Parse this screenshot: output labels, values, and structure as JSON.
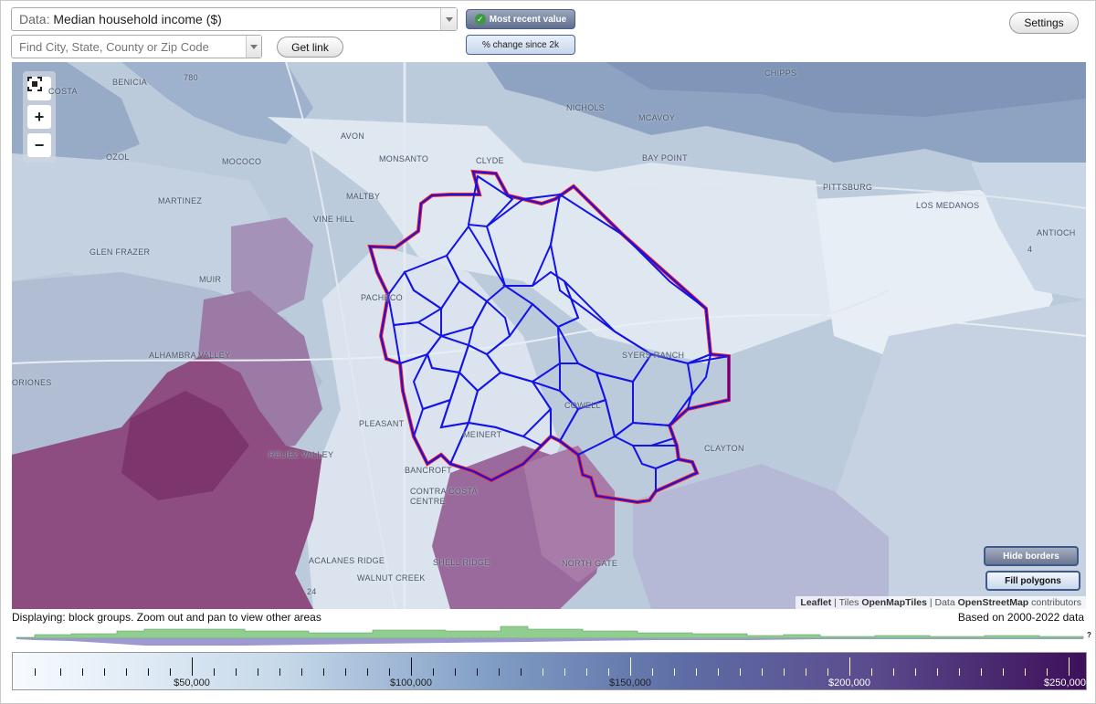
{
  "data_select": {
    "label": "Data:",
    "value": "Median household income ($)"
  },
  "search": {
    "placeholder": "Find City, State, County or Zip Code"
  },
  "get_link_label": "Get link",
  "mode": {
    "recent_label": "Most recent value",
    "change_label": "% change since 2k"
  },
  "settings_label": "Settings",
  "map": {
    "place_labels": [
      "COSTA",
      "BENICIA",
      "780",
      "CHIPPS",
      "NICHOLS",
      "MCAVOY",
      "AVON",
      "CLYDE",
      "OZOL",
      "MOCOCO",
      "MONSANTO",
      "BAY POINT",
      "MARTINEZ",
      "MALTBY",
      "PITTSBURG",
      "LOS MEDANOS",
      "VINE HILL",
      "GLEN FRAZER",
      "PACHECO",
      "ANTIOCH",
      "MUIR",
      "ALHAMBRA VALLEY",
      "SYERS RANCH",
      "ORIONES",
      "COWELL",
      "PLEASANT",
      "CLAYTON",
      "RELIEZ VALLEY",
      "MEINERT",
      "BANCROFT",
      "CONTRA COSTA CENTRE",
      "ACALANES RIDGE",
      "SHELL RIDGE",
      "NORTH GATE",
      "WALNUT CREEK",
      "24",
      "4"
    ],
    "colors": {
      "border_blue": "#1414e6",
      "border_red": "#ff1a1a",
      "high_income": "#8c3f78",
      "low_income": "#e4ecf4",
      "water": "#8da3c2"
    },
    "zoom_fit_icon": "fullscreen-icon",
    "zoom_in_label": "+",
    "zoom_out_label": "−"
  },
  "buttons": {
    "hide_borders": "Hide borders",
    "fill_polygons": "Fill polygons"
  },
  "attribution": {
    "leaflet": "Leaflet",
    "sep1": "|",
    "tiles": "Tiles",
    "tiles_src": "OpenMapTiles",
    "sep2": "|",
    "data": "Data",
    "data_src": "OpenStreetMap",
    "contributors": "contributors"
  },
  "display_note": "Displaying: block groups. Zoom out and pan to view other areas",
  "data_note": "Based on 2000-2022 data",
  "histogram": {
    "help_label": "?",
    "colors": {
      "green": "#8fce8f",
      "purple": "#9d97d2"
    }
  },
  "legend": {
    "labels": [
      "$50,000",
      "$100,000",
      "$150,000",
      "$200,000",
      "$250,000"
    ]
  }
}
